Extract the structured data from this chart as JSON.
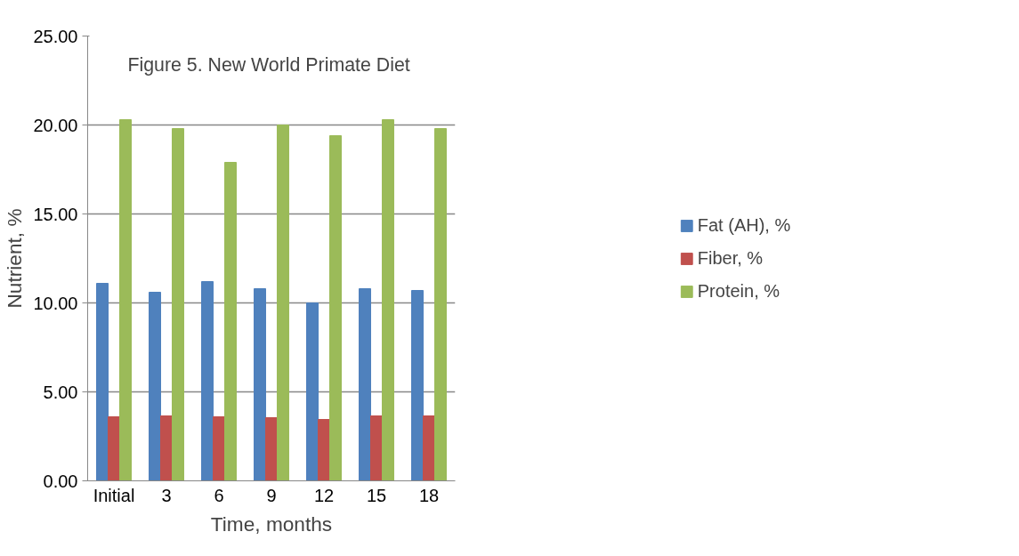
{
  "chart_data": {
    "type": "bar",
    "title": "Figure 5.  New World Primate Diet",
    "xlabel": "Time, months",
    "ylabel": "Nutrient, %",
    "categories": [
      "Initial",
      "3",
      "6",
      "9",
      "12",
      "15",
      "18"
    ],
    "series": [
      {
        "name": "Fat (AH), %",
        "color": "#4f81bd",
        "values": [
          11.1,
          10.6,
          11.2,
          10.8,
          10.0,
          10.8,
          10.7
        ]
      },
      {
        "name": "Fiber, %",
        "color": "#c0504d",
        "values": [
          3.6,
          3.65,
          3.6,
          3.55,
          3.45,
          3.65,
          3.65
        ]
      },
      {
        "name": "Protein, %",
        "color": "#9bbb59",
        "values": [
          20.3,
          19.8,
          17.9,
          20.0,
          19.4,
          20.3,
          19.8
        ]
      }
    ],
    "ylim": [
      0,
      25
    ],
    "yticks": [
      {
        "value": 0,
        "label": "0.00"
      },
      {
        "value": 5,
        "label": "5.00"
      },
      {
        "value": 10,
        "label": "10.00"
      },
      {
        "value": 15,
        "label": "15.00"
      },
      {
        "value": 20,
        "label": "20.00"
      },
      {
        "value": 25,
        "label": "25.00"
      }
    ],
    "grid": "y",
    "legend": "right"
  }
}
